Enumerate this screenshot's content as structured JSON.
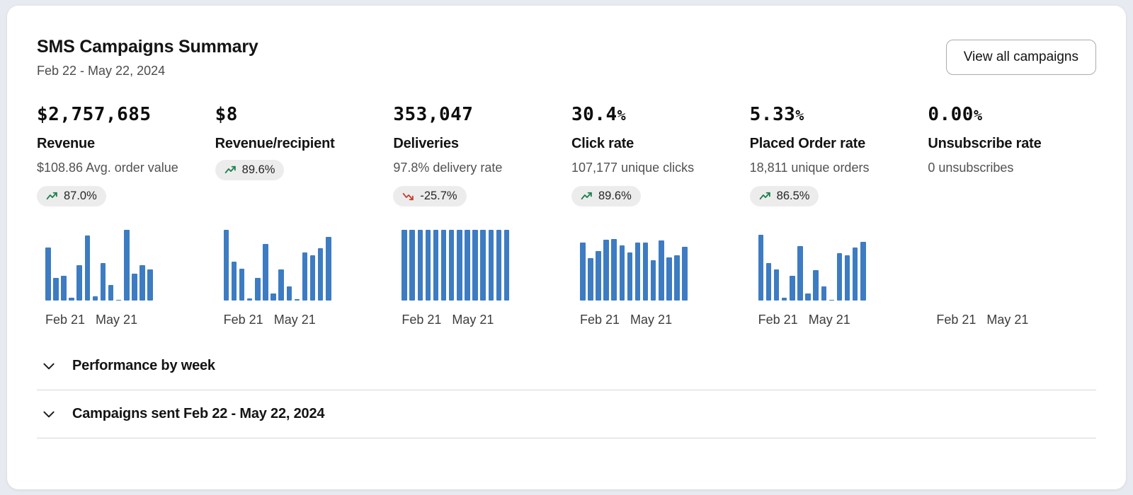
{
  "header": {
    "title": "SMS Campaigns Summary",
    "date_range": "Feb 22 - May 22, 2024",
    "view_all_button": "View all campaigns"
  },
  "colors": {
    "bar": "#3d7cc2",
    "positive": "#1b7f4e",
    "negative": "#c2402f",
    "badge_bg": "#ececec"
  },
  "metrics": [
    {
      "value": "$2,757,685",
      "unit": "",
      "label": "Revenue",
      "subtext": "$108.86 Avg. order value",
      "badge": {
        "text": "87.0%",
        "direction": "up"
      }
    },
    {
      "value": "$8",
      "unit": "",
      "label": "Revenue/recipient",
      "subtext": "",
      "badge": {
        "text": "89.6%",
        "direction": "up"
      }
    },
    {
      "value": "353,047",
      "unit": "",
      "label": "Deliveries",
      "subtext": "97.8% delivery rate",
      "badge": {
        "text": "-25.7%",
        "direction": "down"
      }
    },
    {
      "value": "30.4",
      "unit": "%",
      "label": "Click rate",
      "subtext": "107,177 unique clicks",
      "badge": {
        "text": "89.6%",
        "direction": "up"
      }
    },
    {
      "value": "5.33",
      "unit": "%",
      "label": "Placed Order rate",
      "subtext": "18,811 unique orders",
      "badge": {
        "text": "86.5%",
        "direction": "up"
      }
    },
    {
      "value": "0.00",
      "unit": "%",
      "label": "Unsubscribe rate",
      "subtext": "0 unsubscribes",
      "badge": null
    }
  ],
  "chart_data": [
    {
      "type": "bar",
      "metric": "Revenue",
      "x_start": "Feb 21",
      "x_end": "May 21",
      "ylim": [
        0,
        1
      ],
      "note": "relative bar heights, unlabeled y-axis sparkline",
      "values": [
        0.75,
        0.32,
        0.35,
        0.04,
        0.5,
        0.92,
        0.06,
        0.53,
        0.22,
        0.01,
        1.0,
        0.38,
        0.5,
        0.44
      ]
    },
    {
      "type": "bar",
      "metric": "Revenue/recipient",
      "x_start": "Feb 21",
      "x_end": "May 21",
      "ylim": [
        0,
        1
      ],
      "note": "relative bar heights",
      "values": [
        1.0,
        0.55,
        0.45,
        0.03,
        0.32,
        0.8,
        0.1,
        0.44,
        0.2,
        0.02,
        0.68,
        0.64,
        0.74,
        0.9
      ]
    },
    {
      "type": "bar",
      "metric": "Deliveries",
      "x_start": "Feb 21",
      "x_end": "May 21",
      "ylim": [
        0,
        1
      ],
      "note": "uniform full-height bars",
      "values": [
        1,
        1,
        1,
        1,
        1,
        1,
        1,
        1,
        1,
        1,
        1,
        1,
        1,
        1
      ]
    },
    {
      "type": "bar",
      "metric": "Click rate",
      "x_start": "Feb 21",
      "x_end": "May 21",
      "ylim": [
        0,
        1
      ],
      "note": "relative bar heights",
      "values": [
        0.82,
        0.6,
        0.7,
        0.86,
        0.87,
        0.78,
        0.68,
        0.82,
        0.82,
        0.57,
        0.85,
        0.61,
        0.64,
        0.76
      ]
    },
    {
      "type": "bar",
      "metric": "Placed Order rate",
      "x_start": "Feb 21",
      "x_end": "May 21",
      "ylim": [
        0,
        1
      ],
      "note": "relative bar heights",
      "values": [
        0.93,
        0.53,
        0.44,
        0.04,
        0.35,
        0.77,
        0.1,
        0.43,
        0.2,
        0.01,
        0.67,
        0.64,
        0.75,
        0.83
      ]
    },
    {
      "type": "bar",
      "metric": "Unsubscribe rate",
      "x_start": "Feb 21",
      "x_end": "May 21",
      "ylim": [
        0,
        1
      ],
      "note": "no bars rendered (zero data)",
      "values": []
    }
  ],
  "sections": [
    {
      "label": "Performance by week"
    },
    {
      "label": "Campaigns sent Feb 22 - May 22, 2024"
    }
  ]
}
